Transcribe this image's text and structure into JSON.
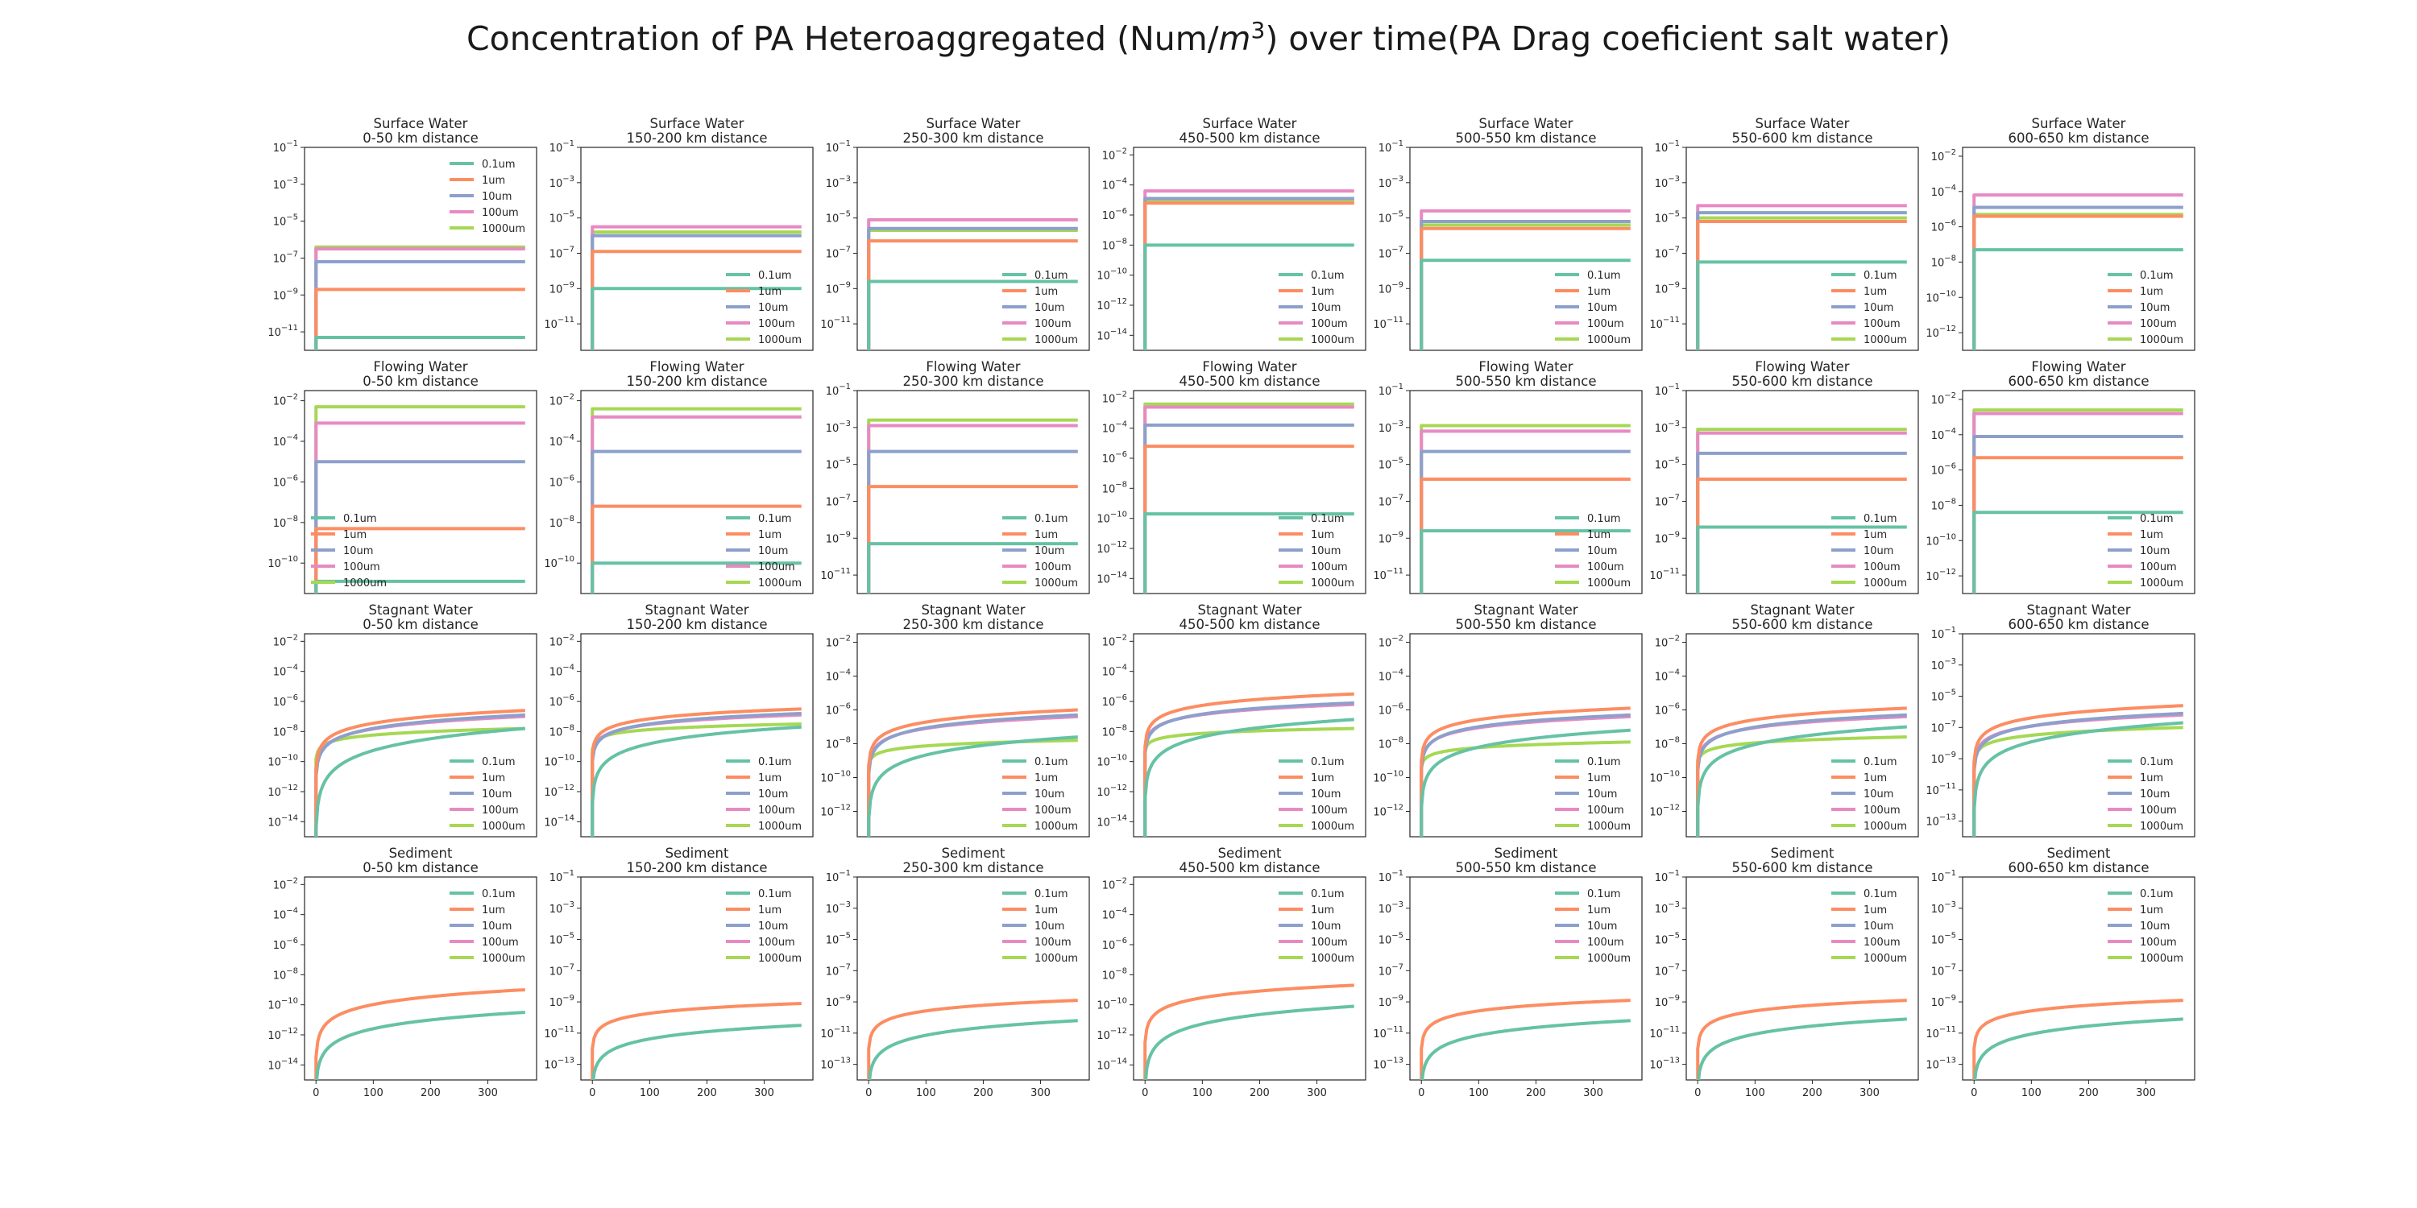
{
  "figure": {
    "title_pre": "Concentration of PA Heteroaggregated (Num/",
    "title_var": "m",
    "title_sup": "3",
    "title_post": ") over time(PA Drag coeficient salt water)"
  },
  "chart_data": {
    "type": "line",
    "rows": [
      "Surface Water",
      "Flowing Water",
      "Stagnant Water",
      "Sediment"
    ],
    "cols": [
      "0-50 km distance",
      "150-200 km distance",
      "250-300 km distance",
      "450-500 km distance",
      "500-550 km distance",
      "550-600 km distance",
      "600-650 km distance"
    ],
    "series_names": [
      "0.1um",
      "1um",
      "10um",
      "100um",
      "1000um"
    ],
    "colors": [
      "#66c2a5",
      "#fc8d62",
      "#8da0cb",
      "#e78ac3",
      "#a6d854"
    ],
    "xlim": [
      -20,
      385
    ],
    "xticks": [
      "0",
      "100",
      "200",
      "300"
    ],
    "yscale": "log",
    "grid": false,
    "panels": [
      [
        {
          "title": "Surface Water",
          "subtitle": "0-50 km distance",
          "ylim": [
            -12,
            -1
          ],
          "yticks": [
            -1,
            -3,
            -5,
            -7,
            -9,
            -11
          ],
          "legend": "top-right",
          "kind": "flat",
          "levels": {
            "0.1um": -11.3,
            "1um": -8.7,
            "10um": -7.2,
            "100um": -6.5,
            "1000um": -6.4
          }
        },
        {
          "title": "Surface Water",
          "subtitle": "150-200 km distance",
          "ylim": [
            -12.5,
            -1
          ],
          "yticks": [
            -1,
            -3,
            -5,
            -7,
            -9,
            -11
          ],
          "legend": "bottom-right",
          "kind": "flat",
          "levels": {
            "0.1um": -9.0,
            "1um": -6.9,
            "10um": -6.0,
            "100um": -5.5,
            "1000um": -5.8
          }
        },
        {
          "title": "Surface Water",
          "subtitle": "250-300 km distance",
          "ylim": [
            -12.5,
            -1
          ],
          "yticks": [
            -1,
            -3,
            -5,
            -7,
            -9,
            -11
          ],
          "legend": "bottom-right",
          "kind": "flat",
          "levels": {
            "0.1um": -8.6,
            "1um": -6.3,
            "10um": -5.6,
            "100um": -5.1,
            "1000um": -5.7
          }
        },
        {
          "title": "Surface Water",
          "subtitle": "450-500 km distance",
          "ylim": [
            -15,
            -1.5
          ],
          "yticks": [
            -2,
            -4,
            -6,
            -8,
            -10,
            -12,
            -14
          ],
          "legend": "bottom-right",
          "kind": "flat",
          "levels": {
            "0.1um": -8.0,
            "1um": -5.2,
            "10um": -4.9,
            "100um": -4.4,
            "1000um": -5.0
          }
        },
        {
          "title": "Surface Water",
          "subtitle": "500-550 km distance",
          "ylim": [
            -12.5,
            -1
          ],
          "yticks": [
            -1,
            -3,
            -5,
            -7,
            -9,
            -11
          ],
          "legend": "bottom-right",
          "kind": "flat",
          "levels": {
            "0.1um": -7.4,
            "1um": -5.6,
            "10um": -5.2,
            "100um": -4.6,
            "1000um": -5.4
          }
        },
        {
          "title": "Surface Water",
          "subtitle": "550-600 km distance",
          "ylim": [
            -12.5,
            -1
          ],
          "yticks": [
            -1,
            -3,
            -5,
            -7,
            -9,
            -11
          ],
          "legend": "bottom-right",
          "kind": "flat",
          "levels": {
            "0.1um": -7.5,
            "1um": -5.2,
            "10um": -4.7,
            "100um": -4.3,
            "1000um": -5.0
          }
        },
        {
          "title": "Surface Water",
          "subtitle": "600-650 km distance",
          "ylim": [
            -13,
            -1.5
          ],
          "yticks": [
            -2,
            -4,
            -6,
            -8,
            -10,
            -12
          ],
          "legend": "bottom-right",
          "kind": "flat",
          "levels": {
            "0.1um": -7.3,
            "1um": -5.4,
            "10um": -4.9,
            "100um": -4.2,
            "1000um": -5.3
          }
        }
      ],
      [
        {
          "title": "Flowing Water",
          "subtitle": "0-50 km distance",
          "ylim": [
            -11.5,
            -1.5
          ],
          "yticks": [
            -2,
            -4,
            -6,
            -8,
            -10
          ],
          "legend": "bottom-left",
          "kind": "flat",
          "levels": {
            "0.1um": -10.9,
            "1um": -8.3,
            "10um": -5.0,
            "100um": -3.1,
            "1000um": -2.3
          }
        },
        {
          "title": "Flowing Water",
          "subtitle": "150-200 km distance",
          "ylim": [
            -11.5,
            -1.5
          ],
          "yticks": [
            -2,
            -4,
            -6,
            -8,
            -10
          ],
          "legend": "bottom-right",
          "kind": "flat",
          "levels": {
            "0.1um": -10.0,
            "1um": -7.2,
            "10um": -4.5,
            "100um": -2.8,
            "1000um": -2.4
          }
        },
        {
          "title": "Flowing Water",
          "subtitle": "250-300 km distance",
          "ylim": [
            -12,
            -1
          ],
          "yticks": [
            -1,
            -3,
            -5,
            -7,
            -9,
            -11
          ],
          "legend": "bottom-right",
          "kind": "flat",
          "levels": {
            "0.1um": -9.3,
            "1um": -6.2,
            "10um": -4.3,
            "100um": -2.9,
            "1000um": -2.6
          }
        },
        {
          "title": "Flowing Water",
          "subtitle": "450-500 km distance",
          "ylim": [
            -15,
            -1.5
          ],
          "yticks": [
            -2,
            -4,
            -6,
            -8,
            -10,
            -12,
            -14
          ],
          "legend": "bottom-right",
          "kind": "flat",
          "levels": {
            "0.1um": -9.7,
            "1um": -5.2,
            "10um": -3.8,
            "100um": -2.6,
            "1000um": -2.4
          }
        },
        {
          "title": "Flowing Water",
          "subtitle": "500-550 km distance",
          "ylim": [
            -12,
            -1
          ],
          "yticks": [
            -1,
            -3,
            -5,
            -7,
            -9,
            -11
          ],
          "legend": "bottom-right",
          "kind": "flat",
          "levels": {
            "0.1um": -8.6,
            "1um": -5.8,
            "10um": -4.3,
            "100um": -3.2,
            "1000um": -2.9
          }
        },
        {
          "title": "Flowing Water",
          "subtitle": "550-600 km distance",
          "ylim": [
            -12,
            -1
          ],
          "yticks": [
            -1,
            -3,
            -5,
            -7,
            -9,
            -11
          ],
          "legend": "bottom-right",
          "kind": "flat",
          "levels": {
            "0.1um": -8.4,
            "1um": -5.8,
            "10um": -4.4,
            "100um": -3.3,
            "1000um": -3.1
          }
        },
        {
          "title": "Flowing Water",
          "subtitle": "600-650 km distance",
          "ylim": [
            -13,
            -1.5
          ],
          "yticks": [
            -2,
            -4,
            -6,
            -8,
            -10,
            -12
          ],
          "legend": "bottom-right",
          "kind": "flat",
          "levels": {
            "0.1um": -8.4,
            "1um": -5.3,
            "10um": -4.1,
            "100um": -2.8,
            "1000um": -2.6
          }
        }
      ],
      [
        {
          "title": "Stagnant Water",
          "subtitle": "0-50 km distance",
          "ylim": [
            -15,
            -1.5
          ],
          "yticks": [
            -2,
            -4,
            -6,
            -8,
            -10,
            -12,
            -14
          ],
          "legend": "bottom-right",
          "kind": "growth",
          "end_levels": {
            "0.1um": -7.8,
            "1um": -6.6,
            "10um": -6.9,
            "100um": -7.0,
            "1000um": -7.8
          },
          "start_levels": {
            "0.1um": -14.5,
            "1um": -10.5,
            "10um": -11.0,
            "100um": -10.8,
            "1000um": -9.8
          }
        },
        {
          "title": "Stagnant Water",
          "subtitle": "150-200 km distance",
          "ylim": [
            -15,
            -1.5
          ],
          "yticks": [
            -2,
            -4,
            -6,
            -8,
            -10,
            -12,
            -14
          ],
          "legend": "bottom-right",
          "kind": "growth",
          "end_levels": {
            "0.1um": -7.7,
            "1um": -6.5,
            "10um": -6.8,
            "100um": -6.9,
            "1000um": -7.5
          },
          "start_levels": {
            "0.1um": -12.8,
            "1um": -9.5,
            "10um": -10.0,
            "100um": -9.8,
            "1000um": -9.2
          }
        },
        {
          "title": "Stagnant Water",
          "subtitle": "250-300 km distance",
          "ylim": [
            -13.5,
            -1.5
          ],
          "yticks": [
            -2,
            -4,
            -6,
            -8,
            -10,
            -12
          ],
          "legend": "bottom-right",
          "kind": "growth",
          "end_levels": {
            "0.1um": -7.6,
            "1um": -6.0,
            "10um": -6.3,
            "100um": -6.4,
            "1000um": -7.8
          },
          "start_levels": {
            "0.1um": -12.5,
            "1um": -9.3,
            "10um": -9.8,
            "100um": -9.6,
            "1000um": -9.3
          }
        },
        {
          "title": "Stagnant Water",
          "subtitle": "450-500 km distance",
          "ylim": [
            -15,
            -1.5
          ],
          "yticks": [
            -2,
            -4,
            -6,
            -8,
            -10,
            -12,
            -14
          ],
          "legend": "bottom-right",
          "kind": "growth",
          "end_levels": {
            "0.1um": -7.2,
            "1um": -5.5,
            "10um": -6.1,
            "100um": -6.2,
            "1000um": -7.8
          },
          "start_levels": {
            "0.1um": -12.5,
            "1um": -9.0,
            "10um": -9.5,
            "100um": -9.3,
            "1000um": -9.3
          }
        },
        {
          "title": "Stagnant Water",
          "subtitle": "500-550 km distance",
          "ylim": [
            -13.5,
            -1.5
          ],
          "yticks": [
            -2,
            -4,
            -6,
            -8,
            -10,
            -12
          ],
          "legend": "bottom-right",
          "kind": "growth",
          "end_levels": {
            "0.1um": -7.2,
            "1um": -5.9,
            "10um": -6.3,
            "100um": -6.4,
            "1000um": -7.9
          },
          "start_levels": {
            "0.1um": -11.8,
            "1um": -9.0,
            "10um": -9.5,
            "100um": -9.4,
            "1000um": -9.4
          }
        },
        {
          "title": "Stagnant Water",
          "subtitle": "550-600 km distance",
          "ylim": [
            -13.5,
            -1.5
          ],
          "yticks": [
            -2,
            -4,
            -6,
            -8,
            -10,
            -12
          ],
          "legend": "bottom-right",
          "kind": "growth",
          "end_levels": {
            "0.1um": -7.0,
            "1um": -5.9,
            "10um": -6.3,
            "100um": -6.4,
            "1000um": -7.6
          },
          "start_levels": {
            "0.1um": -11.8,
            "1um": -9.0,
            "10um": -9.6,
            "100um": -9.4,
            "1000um": -9.2
          }
        },
        {
          "title": "Stagnant Water",
          "subtitle": "600-650 km distance",
          "ylim": [
            -14,
            -1
          ],
          "yticks": [
            -1,
            -3,
            -5,
            -7,
            -9,
            -11,
            -13
          ],
          "legend": "bottom-right",
          "kind": "growth",
          "end_levels": {
            "0.1um": -6.7,
            "1um": -5.6,
            "10um": -6.1,
            "100um": -6.2,
            "1000um": -7.0
          },
          "start_levels": {
            "0.1um": -12.3,
            "1um": -9.2,
            "10um": -9.8,
            "100um": -9.5,
            "1000um": -9.3
          }
        }
      ],
      [
        {
          "title": "Sediment",
          "subtitle": "0-50 km distance",
          "ylim": [
            -15,
            -1.5
          ],
          "yticks": [
            -2,
            -4,
            -6,
            -8,
            -10,
            -12,
            -14
          ],
          "legend": "top-right",
          "kind": "growth",
          "end_levels": {
            "0.1um": -10.5,
            "1um": -9.0
          },
          "start_levels": {
            "0.1um": -15.5,
            "1um": -13.5
          }
        },
        {
          "title": "Sediment",
          "subtitle": "150-200 km distance",
          "ylim": [
            -14,
            -1
          ],
          "yticks": [
            -1,
            -3,
            -5,
            -7,
            -9,
            -11,
            -13
          ],
          "legend": "top-right",
          "kind": "growth",
          "end_levels": {
            "0.1um": -10.5,
            "1um": -9.1
          },
          "start_levels": {
            "0.1um": -14.5,
            "1um": -12.0
          }
        },
        {
          "title": "Sediment",
          "subtitle": "250-300 km distance",
          "ylim": [
            -14,
            -1
          ],
          "yticks": [
            -1,
            -3,
            -5,
            -7,
            -9,
            -11,
            -13
          ],
          "legend": "top-right",
          "kind": "growth",
          "end_levels": {
            "0.1um": -10.2,
            "1um": -8.9
          },
          "start_levels": {
            "0.1um": -14.5,
            "1um": -12.0
          }
        },
        {
          "title": "Sediment",
          "subtitle": "450-500 km distance",
          "ylim": [
            -15,
            -1.5
          ],
          "yticks": [
            -2,
            -4,
            -6,
            -8,
            -10,
            -12,
            -14
          ],
          "legend": "top-right",
          "kind": "growth",
          "end_levels": {
            "0.1um": -10.1,
            "1um": -8.7
          },
          "start_levels": {
            "0.1um": -15.5,
            "1um": -12.5
          }
        },
        {
          "title": "Sediment",
          "subtitle": "500-550 km distance",
          "ylim": [
            -14,
            -1
          ],
          "yticks": [
            -1,
            -3,
            -5,
            -7,
            -9,
            -11,
            -13
          ],
          "legend": "top-right",
          "kind": "growth",
          "end_levels": {
            "0.1um": -10.2,
            "1um": -8.9
          },
          "start_levels": {
            "0.1um": -14.5,
            "1um": -12.0
          }
        },
        {
          "title": "Sediment",
          "subtitle": "550-600 km distance",
          "ylim": [
            -14,
            -1
          ],
          "yticks": [
            -1,
            -3,
            -5,
            -7,
            -9,
            -11,
            -13
          ],
          "legend": "top-right",
          "kind": "growth",
          "end_levels": {
            "0.1um": -10.1,
            "1um": -8.9
          },
          "start_levels": {
            "0.1um": -14.5,
            "1um": -12.0
          }
        },
        {
          "title": "Sediment",
          "subtitle": "600-650 km distance",
          "ylim": [
            -14,
            -1
          ],
          "yticks": [
            -1,
            -3,
            -5,
            -7,
            -9,
            -11,
            -13
          ],
          "legend": "top-right",
          "kind": "growth",
          "end_levels": {
            "0.1um": -10.1,
            "1um": -8.9
          },
          "start_levels": {
            "0.1um": -14.5,
            "1um": -12.0
          }
        }
      ]
    ]
  }
}
